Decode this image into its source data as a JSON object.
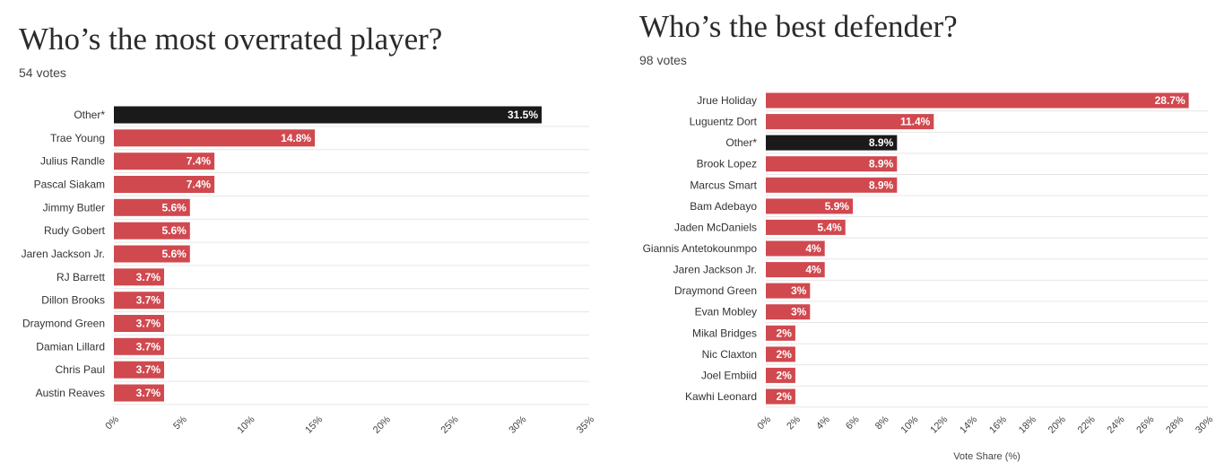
{
  "chart_data": [
    {
      "type": "bar",
      "orientation": "horizontal",
      "title": "Who’s the most overrated player?",
      "subtitle": "54 votes",
      "xlabel": "",
      "ylabel": "",
      "categories": [
        "Other*",
        "Trae Young",
        "Julius Randle",
        "Pascal Siakam",
        "Jimmy Butler",
        "Rudy Gobert",
        "Jaren Jackson Jr.",
        "RJ Barrett",
        "Dillon Brooks",
        "Draymond Green",
        "Damian Lillard",
        "Chris Paul",
        "Austin Reaves"
      ],
      "values": [
        31.5,
        14.8,
        7.4,
        7.4,
        5.6,
        5.6,
        5.6,
        3.7,
        3.7,
        3.7,
        3.7,
        3.7,
        3.7
      ],
      "value_labels": [
        "31.5%",
        "14.8%",
        "7.4%",
        "7.4%",
        "5.6%",
        "5.6%",
        "5.6%",
        "3.7%",
        "3.7%",
        "3.7%",
        "3.7%",
        "3.7%",
        "3.7%"
      ],
      "highlight": [
        "Other*"
      ],
      "xlim": [
        0,
        35
      ],
      "ticks": [
        0,
        5,
        10,
        15,
        20,
        25,
        30,
        35
      ],
      "tick_labels": [
        "0%",
        "5%",
        "10%",
        "15%",
        "20%",
        "25%",
        "30%",
        "35%"
      ],
      "grid": true,
      "colors": {
        "bar": "#d0494f",
        "highlight": "#1a1a1a",
        "grid": "#e6e6e6"
      }
    },
    {
      "type": "bar",
      "orientation": "horizontal",
      "title": "Who’s the best defender?",
      "subtitle": "98 votes",
      "xlabel": "Vote Share (%)",
      "ylabel": "",
      "categories": [
        "Jrue Holiday",
        "Luguentz Dort",
        "Other*",
        "Brook Lopez",
        "Marcus Smart",
        "Bam Adebayo",
        "Jaden McDaniels",
        "Giannis Antetokounmpo",
        "Jaren Jackson Jr.",
        "Draymond Green",
        "Evan Mobley",
        "Mikal Bridges",
        "Nic Claxton",
        "Joel Embiid",
        "Kawhi Leonard"
      ],
      "values": [
        28.7,
        11.4,
        8.9,
        8.9,
        8.9,
        5.9,
        5.4,
        4,
        4,
        3,
        3,
        2,
        2,
        2,
        2
      ],
      "value_labels": [
        "28.7%",
        "11.4%",
        "8.9%",
        "8.9%",
        "8.9%",
        "5.9%",
        "5.4%",
        "4%",
        "4%",
        "3%",
        "3%",
        "2%",
        "2%",
        "2%",
        "2%"
      ],
      "highlight": [
        "Other*"
      ],
      "xlim": [
        0,
        30
      ],
      "ticks": [
        0,
        2,
        4,
        6,
        8,
        10,
        12,
        14,
        16,
        18,
        20,
        22,
        24,
        26,
        28,
        30
      ],
      "tick_labels": [
        "0%",
        "2%",
        "4%",
        "6%",
        "8%",
        "10%",
        "12%",
        "14%",
        "16%",
        "18%",
        "20%",
        "22%",
        "24%",
        "26%",
        "28%",
        "30%"
      ],
      "grid": true,
      "colors": {
        "bar": "#d0494f",
        "highlight": "#1a1a1a",
        "grid": "#e6e6e6"
      }
    }
  ]
}
